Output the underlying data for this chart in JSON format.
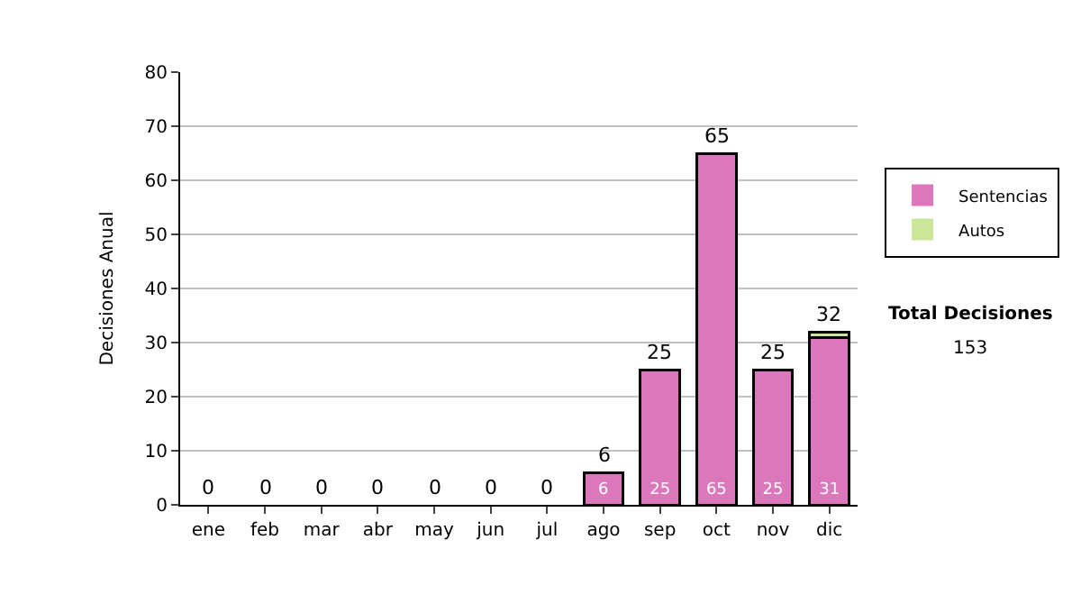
{
  "chart_data": {
    "type": "bar",
    "stacked": true,
    "ylabel": "Decisiones Anual",
    "categories": [
      "ene",
      "feb",
      "mar",
      "abr",
      "may",
      "jun",
      "jul",
      "ago",
      "sep",
      "oct",
      "nov",
      "dic"
    ],
    "series": [
      {
        "name": "Sentencias",
        "color": "#dd77bb",
        "values": [
          0,
          0,
          0,
          0,
          0,
          0,
          0,
          6,
          25,
          65,
          25,
          31
        ],
        "value_labels": [
          null,
          null,
          null,
          null,
          null,
          null,
          null,
          "6",
          "25",
          "65",
          "25",
          "31"
        ]
      },
      {
        "name": "Autos",
        "color": "#cce699",
        "values": [
          0,
          0,
          0,
          0,
          0,
          0,
          0,
          0,
          0,
          0,
          0,
          1
        ]
      }
    ],
    "totals": [
      "0",
      "0",
      "0",
      "0",
      "0",
      "0",
      "0",
      "6",
      "25",
      "65",
      "25",
      "32"
    ],
    "ylim": [
      0,
      80
    ],
    "yticks": [
      0,
      10,
      20,
      30,
      40,
      50,
      60,
      70,
      80
    ],
    "grid": "y",
    "legend": "right",
    "annotations": [
      "Total Decisiones",
      "153"
    ]
  }
}
